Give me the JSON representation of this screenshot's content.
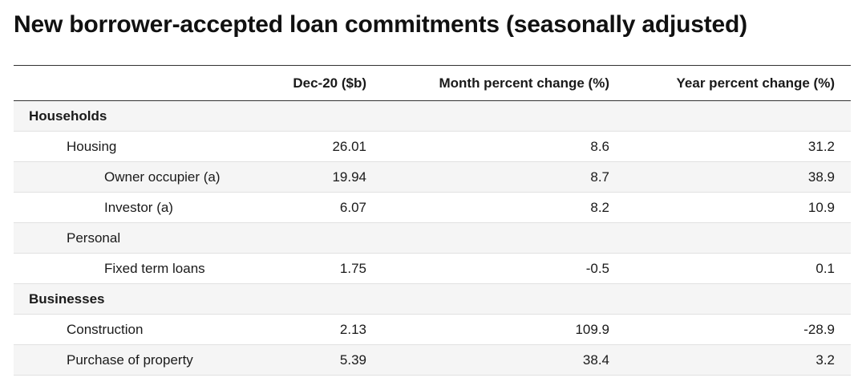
{
  "title": "New borrower-accepted loan commitments (seasonally adjusted)",
  "columns": [
    "",
    "Dec-20 ($b)",
    "Month percent change (%)",
    "Year percent change (%)"
  ],
  "rows": [
    {
      "label": "Households",
      "level": 0,
      "values": [
        "",
        "",
        ""
      ]
    },
    {
      "label": "Housing",
      "level": 1,
      "values": [
        "26.01",
        "8.6",
        "31.2"
      ]
    },
    {
      "label": "Owner occupier (a)",
      "level": 2,
      "values": [
        "19.94",
        "8.7",
        "38.9"
      ]
    },
    {
      "label": "Investor (a)",
      "level": 2,
      "values": [
        "6.07",
        "8.2",
        "10.9"
      ]
    },
    {
      "label": "Personal",
      "level": 1,
      "values": [
        "",
        "",
        ""
      ]
    },
    {
      "label": "Fixed term loans",
      "level": 2,
      "values": [
        "1.75",
        "-0.5",
        "0.1"
      ]
    },
    {
      "label": "Businesses",
      "level": 0,
      "values": [
        "",
        "",
        ""
      ]
    },
    {
      "label": "Construction",
      "level": 1,
      "values": [
        "2.13",
        "109.9",
        "-28.9"
      ]
    },
    {
      "label": "Purchase of property",
      "level": 1,
      "values": [
        "5.39",
        "38.4",
        "3.2"
      ]
    }
  ],
  "chart_data": {
    "type": "table",
    "title": "New borrower-accepted loan commitments (seasonally adjusted)",
    "columns": [
      "",
      "Dec-20 ($b)",
      "Month percent change (%)",
      "Year percent change (%)"
    ],
    "rows": [
      [
        "Households",
        null,
        null,
        null
      ],
      [
        "Housing",
        26.01,
        8.6,
        31.2
      ],
      [
        "Owner occupier (a)",
        19.94,
        8.7,
        38.9
      ],
      [
        "Investor (a)",
        6.07,
        8.2,
        10.9
      ],
      [
        "Personal",
        null,
        null,
        null
      ],
      [
        "Fixed term loans",
        1.75,
        -0.5,
        0.1
      ],
      [
        "Businesses",
        null,
        null,
        null
      ],
      [
        "Construction",
        2.13,
        109.9,
        -28.9
      ],
      [
        "Purchase of property",
        5.39,
        38.4,
        3.2
      ]
    ]
  }
}
